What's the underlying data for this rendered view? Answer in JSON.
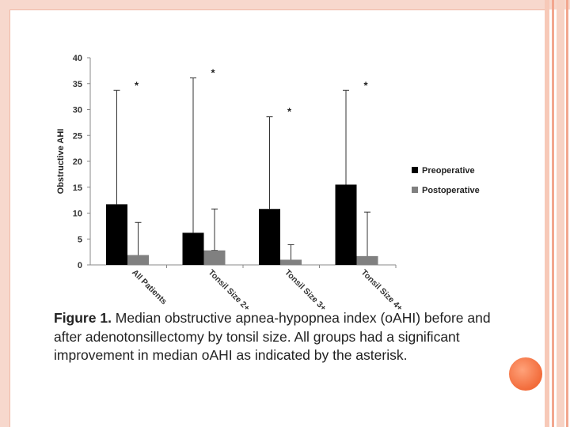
{
  "chart_data": {
    "type": "bar",
    "ylabel": "Obstructive AHI",
    "ylim": [
      0,
      40
    ],
    "yticks": [
      0,
      5,
      10,
      15,
      20,
      25,
      30,
      35,
      40
    ],
    "categories": [
      "All Patients",
      "Tonsil Size 2+",
      "Tonsil Size 3+",
      "Tonsil Size 4+"
    ],
    "series": [
      {
        "name": "Preoperative",
        "color": "#000000",
        "values": [
          11.7,
          6.2,
          10.8,
          15.5
        ],
        "error_upper": [
          33.7,
          36.1,
          28.6,
          33.7
        ]
      },
      {
        "name": "Postoperative",
        "color": "#808080",
        "values": [
          1.9,
          2.8,
          1.0,
          1.7
        ],
        "error_upper": [
          8.2,
          10.8,
          3.9,
          10.2
        ],
        "error_lower": [
          1.0,
          2.8,
          0.6,
          1.0
        ]
      }
    ],
    "annotations": [
      "*",
      "*",
      "*",
      "*"
    ],
    "legend_position": "right",
    "grid": false
  },
  "caption": {
    "label": "Figure 1.",
    "text": " Median obstructive apnea-hypopnea index (oAHI) before and after adenotonsillectomy by tonsil size. All groups had a significant improvement in median oAHI as indicated by the asterisk."
  }
}
